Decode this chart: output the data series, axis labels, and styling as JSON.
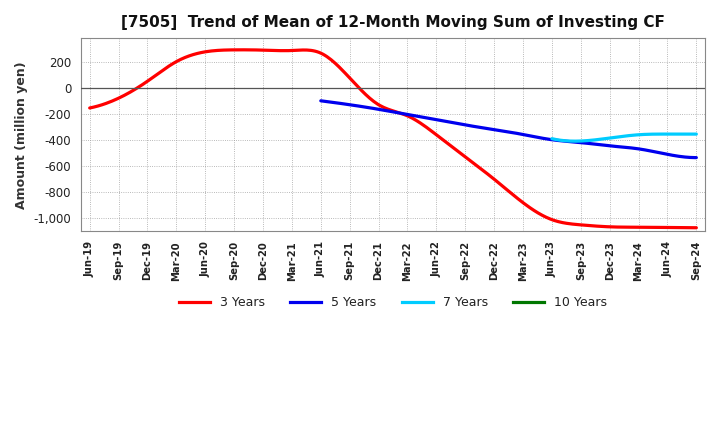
{
  "title": "[7505]  Trend of Mean of 12-Month Moving Sum of Investing CF",
  "ylabel": "Amount (million yen)",
  "background_color": "#ffffff",
  "plot_bg_color": "#ffffff",
  "grid_color": "#aaaaaa",
  "ylim": [
    -1100,
    380
  ],
  "yticks": [
    -1000,
    -800,
    -600,
    -400,
    -200,
    0,
    200
  ],
  "x_labels": [
    "Jun-19",
    "Sep-19",
    "Dec-19",
    "Mar-20",
    "Jun-20",
    "Sep-20",
    "Dec-20",
    "Mar-21",
    "Jun-21",
    "Sep-21",
    "Dec-21",
    "Mar-22",
    "Jun-22",
    "Sep-22",
    "Dec-22",
    "Mar-23",
    "Jun-23",
    "Sep-23",
    "Dec-23",
    "Mar-24",
    "Jun-24",
    "Sep-24"
  ],
  "series": {
    "3 Years": {
      "color": "#ff0000",
      "x": [
        0,
        1,
        2,
        3,
        4,
        5,
        6,
        7,
        8,
        9,
        10,
        11,
        12,
        13,
        14,
        15,
        16,
        17,
        18,
        19,
        20,
        21
      ],
      "y": [
        -155,
        -80,
        50,
        200,
        275,
        290,
        288,
        285,
        265,
        75,
        -130,
        -215,
        -360,
        -530,
        -700,
        -880,
        -1010,
        -1050,
        -1065,
        -1068,
        -1070,
        -1072
      ]
    },
    "5 Years": {
      "color": "#0000ee",
      "x": [
        8,
        9,
        10,
        11,
        12,
        13,
        14,
        15,
        16,
        17,
        18,
        19,
        20,
        21
      ],
      "y": [
        -100,
        -130,
        -165,
        -205,
        -245,
        -285,
        -320,
        -358,
        -398,
        -420,
        -445,
        -468,
        -510,
        -535
      ]
    },
    "7 Years": {
      "color": "#00ccff",
      "x": [
        16,
        17,
        18,
        19,
        20,
        21
      ],
      "y": [
        -390,
        -408,
        -385,
        -360,
        -355,
        -355
      ]
    },
    "10 Years": {
      "color": "#007700",
      "x": [],
      "y": []
    }
  },
  "legend_labels": [
    "3 Years",
    "5 Years",
    "7 Years",
    "10 Years"
  ],
  "legend_colors": [
    "#ff0000",
    "#0000ee",
    "#00ccff",
    "#007700"
  ]
}
